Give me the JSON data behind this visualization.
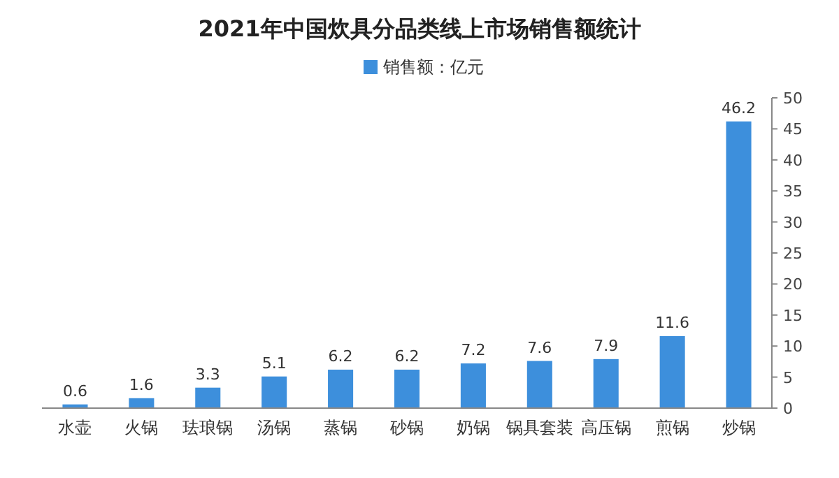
{
  "chart_data": {
    "type": "bar",
    "title": "2021年中国炊具分品类线上市场销售额统计",
    "categories": [
      "水壶",
      "火锅",
      "珐琅锅",
      "汤锅",
      "蒸锅",
      "砂锅",
      "奶锅",
      "锅具套装",
      "高压锅",
      "煎锅",
      "炒锅"
    ],
    "series": [
      {
        "name": "销售额：亿元",
        "color": "#3d8fdc",
        "values": [
          0.6,
          1.6,
          3.3,
          5.1,
          6.2,
          6.2,
          7.2,
          7.6,
          7.9,
          11.6,
          46.2
        ]
      }
    ],
    "ylim": [
      0,
      50
    ],
    "yticks": [
      0,
      5,
      10,
      15,
      20,
      25,
      30,
      35,
      40,
      45,
      50
    ],
    "data_labels": true,
    "legend": "top",
    "grid": false
  }
}
